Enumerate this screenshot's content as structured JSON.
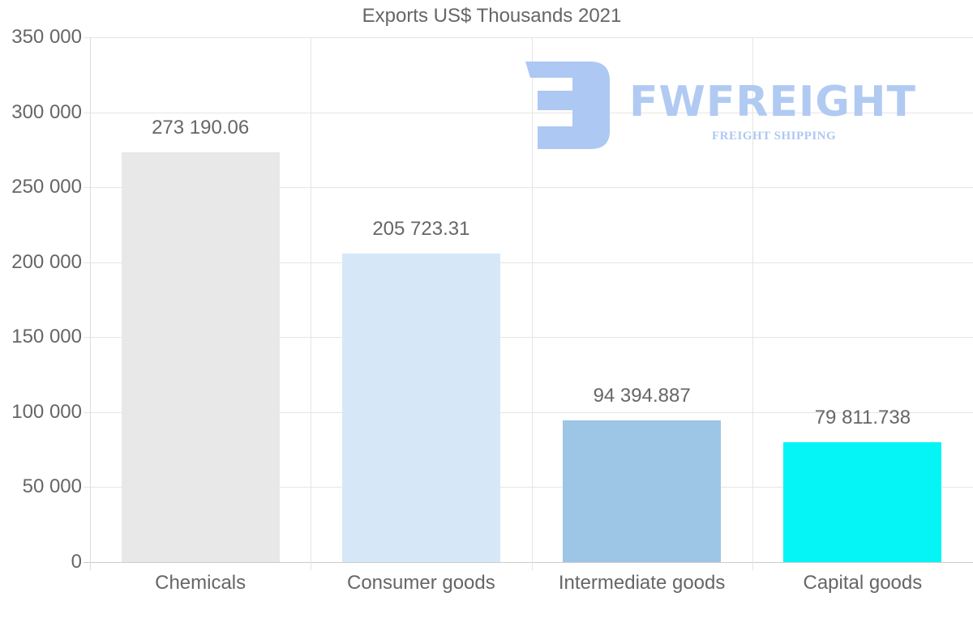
{
  "chart_data": {
    "type": "bar",
    "title": "Exports US$ Thousands 2021",
    "categories": [
      "Chemicals",
      "Consumer goods",
      "Intermediate goods",
      "Capital goods"
    ],
    "values": [
      273190.06,
      205723.31,
      94394.887,
      79811.738
    ],
    "value_labels": [
      "273 190.06",
      "205 723.31",
      "94 394.887",
      "79 811.738"
    ],
    "colors": [
      "#e8e8e8",
      "#d6e8f8",
      "#9dc5e6",
      "#05f5f7"
    ],
    "xlabel": "",
    "ylabel": "",
    "ylim": [
      0,
      350000
    ],
    "yticks": [
      0,
      50000,
      100000,
      150000,
      200000,
      250000,
      300000,
      350000
    ],
    "ytick_labels": [
      "0",
      "50 000",
      "100 000",
      "150 000",
      "200 000",
      "250 000",
      "300 000",
      "350 000"
    ],
    "grid": true,
    "legend": "none"
  },
  "watermark": {
    "brand": "FWFREIGHT",
    "tagline": "FREIGHT SHIPPING",
    "color": "#adc8f2"
  }
}
